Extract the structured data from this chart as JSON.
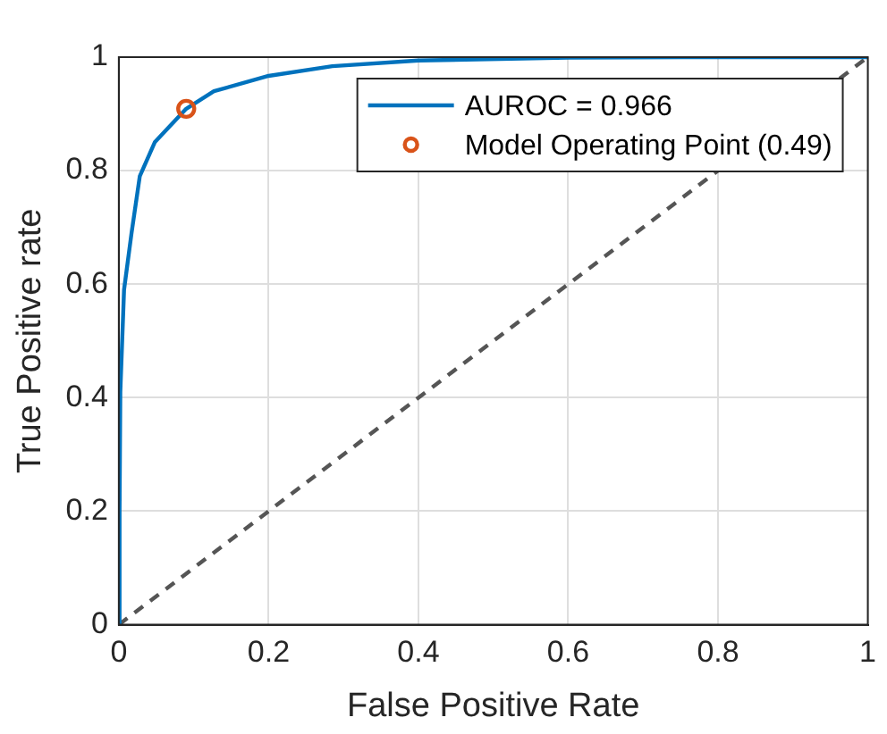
{
  "chart_data": {
    "type": "line",
    "xlabel": "False Positive Rate",
    "ylabel": "True Positive rate",
    "xlim": [
      0,
      1
    ],
    "ylim": [
      0,
      1
    ],
    "xticks": [
      0,
      0.2,
      0.4,
      0.6,
      0.8,
      1
    ],
    "yticks": [
      0,
      0.2,
      0.4,
      0.6,
      0.8,
      1
    ],
    "grid": true,
    "legend": "top right",
    "series": [
      {
        "name": "AUROC = 0.966",
        "type": "line",
        "color": "#0072bd",
        "marker": "none",
        "line_style": "solid",
        "x": [
          0,
          0.001,
          0.002,
          0.007,
          0.017,
          0.028,
          0.048,
          0.09,
          0.127,
          0.2,
          0.285,
          0.4,
          0.6,
          0.8,
          1
        ],
        "values": [
          0,
          0.2,
          0.41,
          0.59,
          0.69,
          0.79,
          0.85,
          0.909,
          0.94,
          0.967,
          0.984,
          0.994,
          0.999,
          1,
          1
        ]
      },
      {
        "name": "Model Operating Point (0.49)",
        "type": "scatter",
        "color": "#d95319",
        "marker": "circle",
        "x": [
          0.09
        ],
        "values": [
          0.909
        ]
      },
      {
        "type": "line",
        "color": "#555555",
        "marker": "none",
        "line_style": "dashed",
        "x": [
          0,
          1
        ],
        "values": [
          0,
          1
        ]
      }
    ]
  }
}
